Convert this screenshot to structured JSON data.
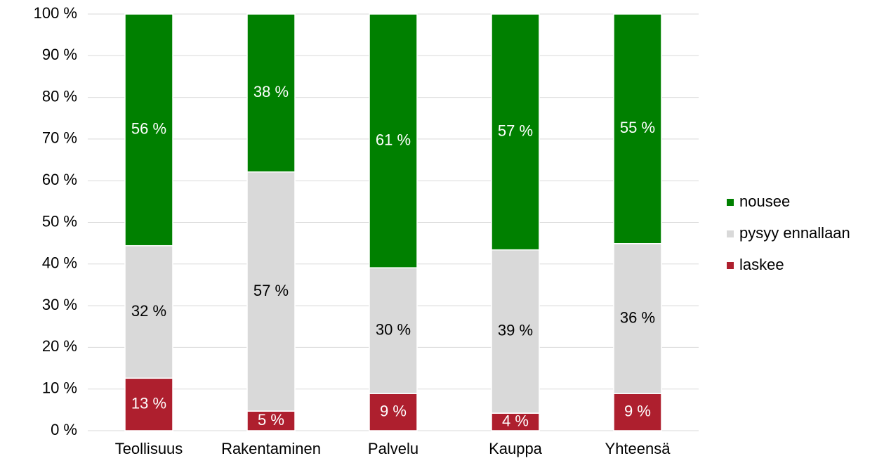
{
  "chart_data": {
    "type": "stacked_bar",
    "categories": [
      "Teollisuus",
      "Rakentaminen",
      "Palvelu",
      "Kauppa",
      "Yhteensä"
    ],
    "series": [
      {
        "name": "laskee",
        "color": "#ae1f2e",
        "values": [
          12.6,
          4.7,
          8.9,
          4.2,
          8.9
        ],
        "value_labels": [
          "13 %",
          "5 %",
          "9 %",
          "4 %",
          "9 %"
        ]
      },
      {
        "name": "pysyy ennallaan",
        "color": "#d9d9d9",
        "values": [
          31.8,
          57.4,
          30.2,
          39.2,
          36.0
        ],
        "value_labels": [
          "32 %",
          "57 %",
          "30 %",
          "39 %",
          "36 %"
        ]
      },
      {
        "name": "nousee",
        "color": "#008000",
        "values": [
          55.6,
          37.9,
          60.9,
          56.6,
          55.1
        ],
        "value_labels": [
          "56 %",
          "38 %",
          "61 %",
          "57 %",
          "55 %"
        ]
      }
    ],
    "ylim": [
      0,
      100
    ],
    "yticks": [
      {
        "value": 0,
        "label": "0 %"
      },
      {
        "value": 10,
        "label": "10 %"
      },
      {
        "value": 20,
        "label": "20 %"
      },
      {
        "value": 30,
        "label": "30 %"
      },
      {
        "value": 40,
        "label": "40 %"
      },
      {
        "value": 50,
        "label": "50 %"
      },
      {
        "value": 60,
        "label": "60 %"
      },
      {
        "value": 70,
        "label": "70 %"
      },
      {
        "value": 80,
        "label": "80 %"
      },
      {
        "value": 90,
        "label": "90 %"
      },
      {
        "value": 100,
        "label": "100 %"
      }
    ],
    "grid": true,
    "legend": "right"
  }
}
